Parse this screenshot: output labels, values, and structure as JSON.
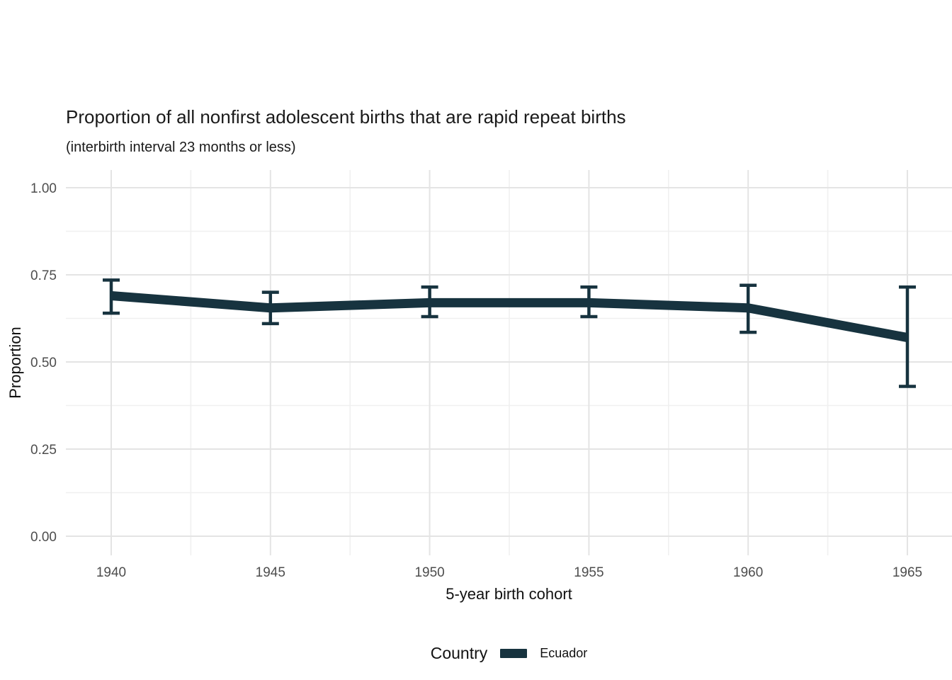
{
  "title": "Proportion of all nonfirst adolescent births that are rapid repeat births",
  "subtitle": "(interbirth interval 23 months or less)",
  "chart_data": {
    "type": "line",
    "x": [
      1940,
      1945,
      1950,
      1955,
      1960,
      1965
    ],
    "x_tick_labels": [
      "1940",
      "1945",
      "1950",
      "1955",
      "1960",
      "1965"
    ],
    "y_ticks": [
      0,
      0.25,
      0.5,
      0.75,
      1.0
    ],
    "y_tick_labels": [
      "0.00",
      "0.25",
      "0.50",
      "0.75",
      "1.00"
    ],
    "ylim": [
      0,
      1
    ],
    "xlabel": "5-year birth cohort",
    "ylabel": "Proportion",
    "grid": "major and minor, light gray on white",
    "series": [
      {
        "name": "Ecuador",
        "values": [
          0.69,
          0.655,
          0.67,
          0.67,
          0.655,
          0.57
        ],
        "ci_low": [
          0.64,
          0.61,
          0.63,
          0.63,
          0.585,
          0.43
        ],
        "ci_high": [
          0.735,
          0.7,
          0.715,
          0.715,
          0.72,
          0.715
        ],
        "color": "#17333f"
      }
    ],
    "legend": {
      "title": "Country",
      "position": "bottom",
      "entries": [
        {
          "label": "Ecuador",
          "color": "#17333f"
        }
      ]
    }
  },
  "colors": {
    "background": "#ffffff",
    "grid_major": "#e4e4e4",
    "grid_minor": "#f0f0f0",
    "axis_text": "#4d4d4d",
    "line": "#17333f"
  }
}
